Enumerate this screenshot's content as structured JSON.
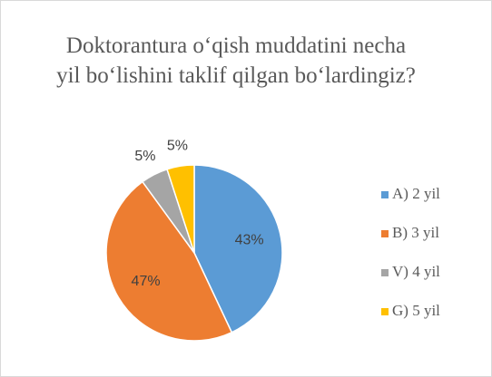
{
  "chart_data": {
    "type": "pie",
    "title": "Doktorantura o‘qish muddatini necha yil bo‘lishini taklif qilgan bo‘lardingiz?",
    "categories": [
      "A) 2 yil",
      "B) 3 yil",
      "V) 4 yil",
      "G) 5 yil"
    ],
    "values": [
      43,
      47,
      5,
      5
    ],
    "value_labels": [
      "43%",
      "47%",
      "5%",
      "5%"
    ],
    "colors": [
      "#5b9bd5",
      "#ed7d31",
      "#a5a5a5",
      "#ffc000"
    ],
    "legend": "right"
  }
}
